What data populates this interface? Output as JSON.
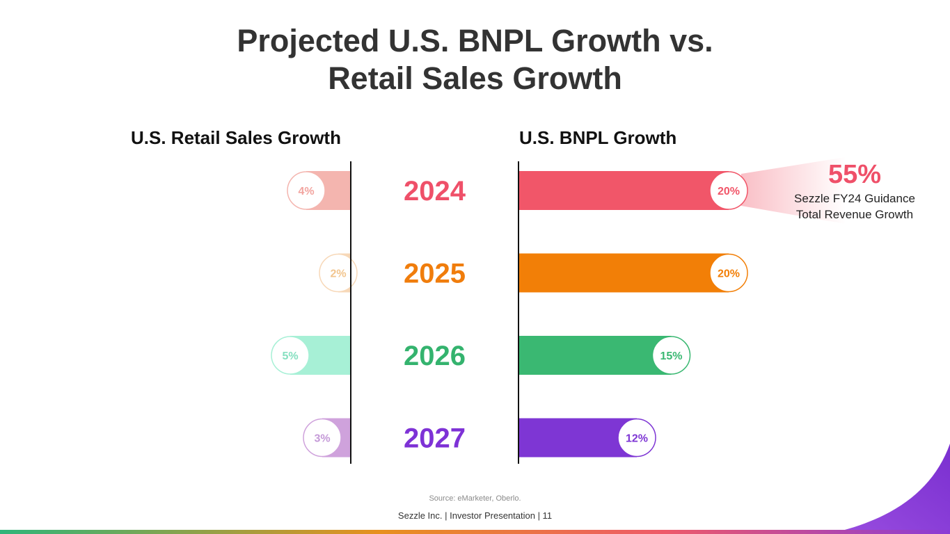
{
  "title": {
    "line1": "Projected U.S. BNPL Growth vs.",
    "line2": "Retail Sales Growth"
  },
  "chart_data": {
    "type": "bar",
    "title": "Projected U.S. BNPL Growth vs. Retail Sales Growth",
    "categories": [
      "2024",
      "2025",
      "2026",
      "2027"
    ],
    "value_unit": "%",
    "series": [
      {
        "name": "U.S. Retail Sales Growth",
        "direction": "left",
        "values": [
          4,
          2,
          5,
          3
        ],
        "labels": [
          "4%",
          "2%",
          "5%",
          "3%"
        ],
        "colors": [
          "#f4b5af",
          "#f7d8b8",
          "#a7f0d6",
          "#cfa2dc"
        ],
        "text_colors": [
          "#f2a5a0",
          "#f2c58e",
          "#86e0c0",
          "#c59ad8"
        ]
      },
      {
        "name": "U.S. BNPL Growth",
        "direction": "right",
        "values": [
          20,
          20,
          15,
          12
        ],
        "labels": [
          "20%",
          "20%",
          "15%",
          "12%"
        ],
        "colors": [
          "#f15669",
          "#f27f07",
          "#3ab872",
          "#7e36d4"
        ]
      }
    ],
    "category_colors": [
      "#ef5069",
      "#f07d0c",
      "#34b36e",
      "#7e32d6"
    ],
    "annotation": {
      "value": "55%",
      "label_line1": "Sezzle FY24 Guidance",
      "label_line2": "Total Revenue Growth",
      "color": "#ef5069"
    }
  },
  "source": "Source: eMarketer, Oberlo.",
  "footer": "Sezzle Inc. | Investor Presentation | 11"
}
